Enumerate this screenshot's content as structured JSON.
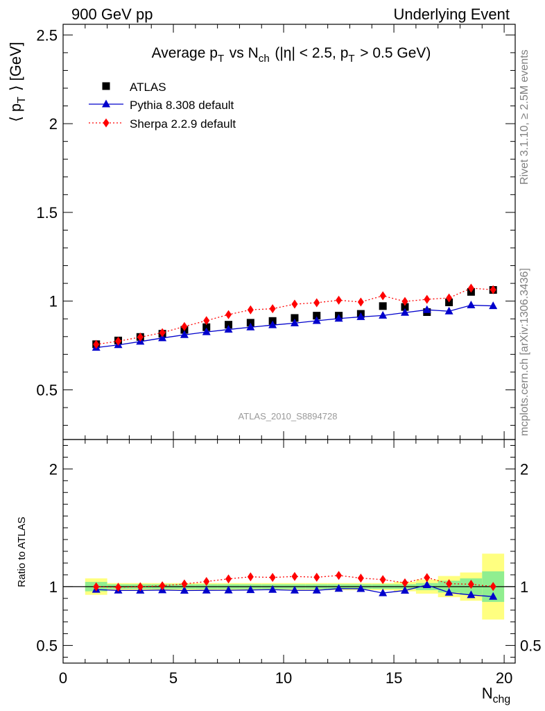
{
  "header": {
    "left": "900 GeV pp",
    "right": "Underlying Event"
  },
  "side": {
    "upper": "Rivet 3.1.10, ≥ 2.5M events",
    "lower": "mcplots.cern.ch [arXiv:1306.3436]"
  },
  "chart_data": {
    "type": "scatter",
    "title": "Average pT vs Nch (|η| < 2.5, pT > 0.5 GeV)",
    "analysis_label": "ATLAS_2010_S8894728",
    "xlabel": "Nchg",
    "ylabel": "⟨ pT ⟩ [GeV]",
    "ratio_ylabel": "Ratio to ATLAS",
    "xlim": [
      0,
      20.5
    ],
    "ylim": [
      0.22,
      2.56
    ],
    "ratio_ylim": [
      0.35,
      2.25
    ],
    "x_ticks": [
      "0",
      "5",
      "10",
      "15",
      "20"
    ],
    "y_ticks": [
      "0.5",
      "1",
      "1.5",
      "2",
      "2.5"
    ],
    "ratio_ticks": [
      "0.5",
      "1",
      "2"
    ],
    "grid": false,
    "legend_position": "top-left",
    "x": [
      1.5,
      2.5,
      3.5,
      4.5,
      5.5,
      6.5,
      7.5,
      8.5,
      9.5,
      10.5,
      11.5,
      12.5,
      13.5,
      14.5,
      15.5,
      16.5,
      17.5,
      18.5,
      19.5
    ],
    "series": [
      {
        "name": "ATLAS",
        "style": "black-square",
        "color": "#000000",
        "values": [
          0.757,
          0.778,
          0.798,
          0.816,
          0.838,
          0.853,
          0.867,
          0.878,
          0.888,
          0.905,
          0.918,
          0.918,
          0.928,
          0.972,
          0.967,
          0.938,
          0.993,
          1.052,
          1.063
        ]
      },
      {
        "name": "Pythia 8.308 default",
        "style": "blue-triangle-solid",
        "color": "#0000cc",
        "values": [
          0.738,
          0.753,
          0.772,
          0.792,
          0.81,
          0.826,
          0.84,
          0.853,
          0.865,
          0.876,
          0.889,
          0.902,
          0.911,
          0.919,
          0.935,
          0.951,
          0.943,
          0.977,
          0.973
        ]
      },
      {
        "name": "Sherpa 2.2.9 default",
        "style": "red-diamond-dotted",
        "color": "#ff0000",
        "values": [
          0.756,
          0.774,
          0.797,
          0.822,
          0.857,
          0.89,
          0.924,
          0.951,
          0.957,
          0.983,
          0.991,
          1.005,
          0.995,
          1.03,
          0.998,
          1.01,
          1.018,
          1.073,
          1.064
        ]
      }
    ],
    "ratio_band": {
      "inner_color": "#90ee90",
      "outer_color": "#ffff80",
      "x_edges": [
        1,
        2,
        3,
        4,
        5,
        6,
        7,
        8,
        9,
        10,
        11,
        12,
        13,
        14,
        15,
        16,
        17,
        18,
        19,
        20
      ],
      "inner_half_width": [
        0.04,
        0.02,
        0.02,
        0.02,
        0.02,
        0.02,
        0.02,
        0.02,
        0.02,
        0.02,
        0.02,
        0.02,
        0.02,
        0.02,
        0.02,
        0.03,
        0.05,
        0.07,
        0.13
      ],
      "outer_half_width": [
        0.07,
        0.03,
        0.03,
        0.03,
        0.03,
        0.03,
        0.03,
        0.03,
        0.03,
        0.03,
        0.03,
        0.03,
        0.03,
        0.03,
        0.04,
        0.06,
        0.09,
        0.12,
        0.28
      ]
    }
  }
}
